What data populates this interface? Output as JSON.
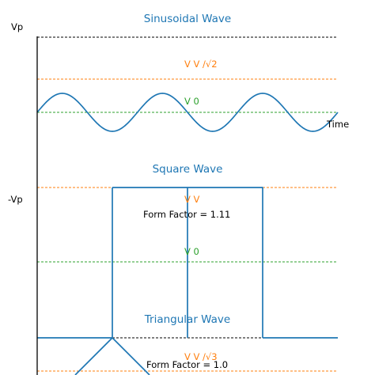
{
  "chart_data": {
    "type": "line",
    "titles": [
      "Sinusoidal Wave",
      "Square Wave",
      "Triangular Wave"
    ],
    "xlabel": "Time",
    "ylabels": [
      "Vp",
      "-Vp"
    ],
    "annotations": [
      {
        "text": "V  V  /√2",
        "color": "#ff7f0e"
      },
      {
        "text": "V  0",
        "color": "#2ca02c"
      },
      {
        "text": "V  V",
        "color": "#ff7f0e"
      },
      {
        "text": "Form Factor = 1.11",
        "color": "#000000"
      },
      {
        "text": "V  0",
        "color": "#2ca02c"
      },
      {
        "text": "V  V  /√3",
        "color": "#ff7f0e"
      },
      {
        "text": "Form Factor = 1.0",
        "color": "#000000"
      }
    ],
    "series": [
      {
        "shape": "sine",
        "amplitude": 1,
        "frequency": 3,
        "color": "#1f77b4",
        "reference_lines": [
          {
            "level": "peak",
            "color": "#000000"
          },
          {
            "level": "rms",
            "color": "#ff7f0e"
          },
          {
            "level": "zero",
            "color": "#2ca02c"
          }
        ]
      },
      {
        "shape": "square",
        "amplitude": 1,
        "frequency": 2,
        "color": "#1f77b4",
        "reference_lines": [
          {
            "level": "peak",
            "color": "#000000"
          },
          {
            "level": "rms",
            "color": "#ff7f0e"
          },
          {
            "level": "zero",
            "color": "#2ca02c"
          }
        ]
      },
      {
        "shape": "triangle",
        "amplitude": 1,
        "color": "#1f77b4",
        "reference_lines": [
          {
            "level": "peak",
            "color": "#000000"
          },
          {
            "level": "rms",
            "color": "#ff7f0e"
          }
        ]
      }
    ]
  }
}
